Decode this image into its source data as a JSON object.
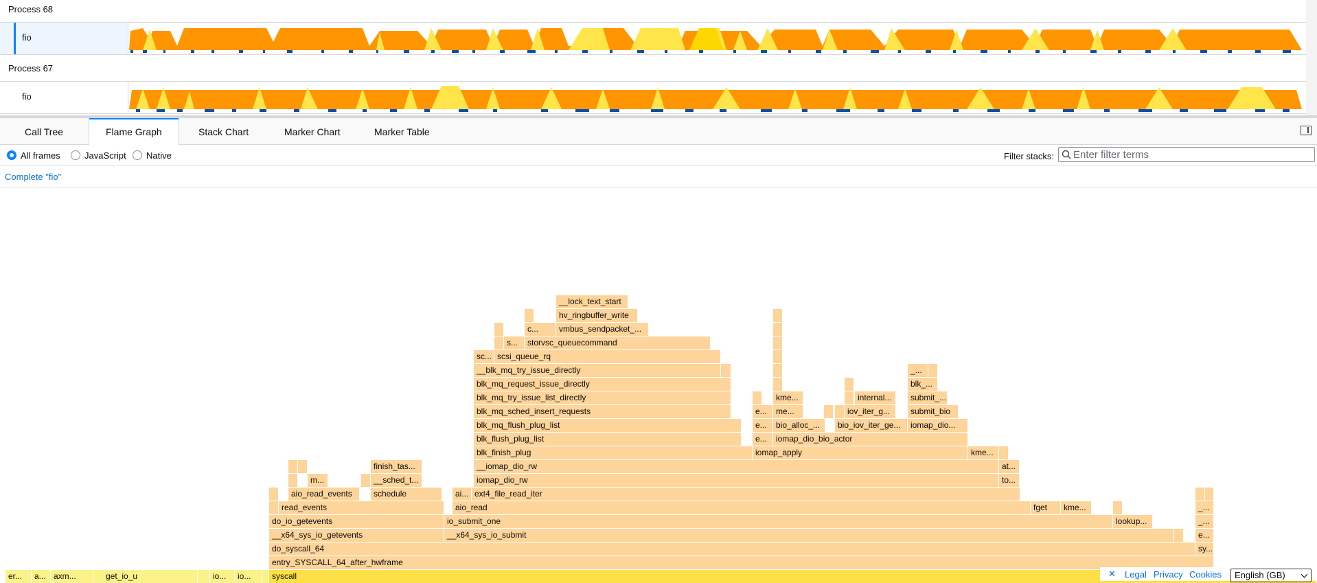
{
  "tracks": [
    {
      "process": "Process 68",
      "thread": "fio",
      "selected": true
    },
    {
      "process": "Process 67",
      "thread": "fio",
      "selected": false
    }
  ],
  "tabs": [
    "Call Tree",
    "Flame Graph",
    "Stack Chart",
    "Marker Chart",
    "Marker Table"
  ],
  "active_tab": "Flame Graph",
  "settings": {
    "radios": [
      "All frames",
      "JavaScript",
      "Native"
    ],
    "selected_radio": "All frames",
    "filter_label": "Filter stacks:",
    "filter_placeholder": "Enter filter terms",
    "filter_value": ""
  },
  "breadcrumb": "Complete \"fio\"",
  "flame_rows": [
    [
      "er...",
      "a...",
      "axm...",
      "get_io_u",
      "",
      "io...",
      "io...",
      "",
      "syscall"
    ],
    [
      "entry_SYSCALL_64_after_hwframe"
    ],
    [
      "do_syscall_64",
      "sy..."
    ],
    [
      "__x64_sys_io_getevents",
      "__x64_sys_io_submit",
      "e..."
    ],
    [
      "do_io_getevents",
      "io_submit_one",
      "lookup...",
      "_..."
    ],
    [
      "read_events",
      "aio_read",
      "fget",
      "kme...",
      "_..."
    ],
    [
      "aio_read_events",
      "schedule",
      "ai...",
      "ext4_file_read_iter"
    ],
    [
      "m...",
      "__sched_t...",
      "iomap_dio_rw",
      "to..."
    ],
    [
      "finish_tas...",
      "__iomap_dio_rw",
      "at..."
    ],
    [
      "blk_finish_plug",
      "iomap_apply",
      "kme..."
    ],
    [
      "blk_flush_plug_list",
      "e...",
      "iomap_dio_bio_actor"
    ],
    [
      "blk_mq_flush_plug_list",
      "e...",
      "bio_alloc_...",
      "bio_iov_iter_ge...",
      "iomap_dio..."
    ],
    [
      "blk_mq_sched_insert_requests",
      "e...",
      "me...",
      "iov_iter_g...",
      "submit_bio"
    ],
    [
      "blk_mq_try_issue_list_directly",
      "kme...",
      "internal...",
      "submit_..."
    ],
    [
      "blk_mq_request_issue_directly",
      "blk_..."
    ],
    [
      "__blk_mq_try_issue_directly",
      "_..."
    ],
    [
      "sc...",
      "scsi_queue_rq"
    ],
    [
      "s...",
      "storvsc_queuecommand"
    ],
    [
      "c...",
      "vmbus_sendpacket_..."
    ],
    [
      "hv_ringbuffer_write"
    ],
    [
      "__lock_text_start"
    ]
  ],
  "footer": {
    "close": "✕",
    "links": [
      "Legal",
      "Privacy",
      "Cookies"
    ],
    "language": "English (GB)"
  },
  "colors": {
    "accent": "#0a84ff",
    "flame": "#fdd49a",
    "root": "#fde047",
    "activity": "#ff9500",
    "activity_idle": "#ffe54a"
  }
}
